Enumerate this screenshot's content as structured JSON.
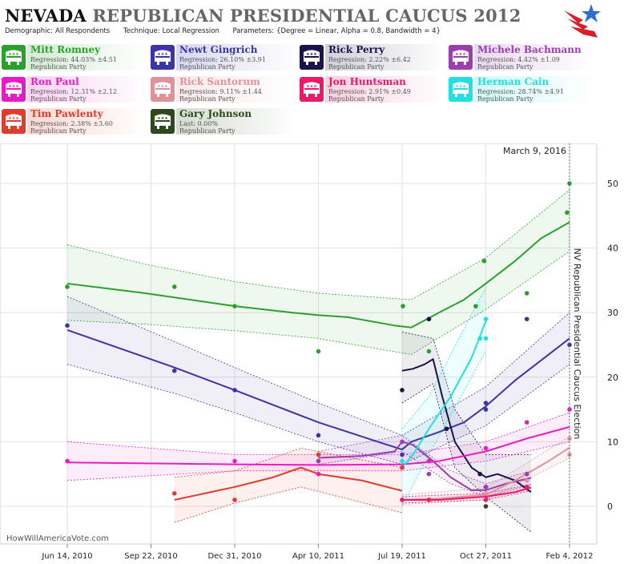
{
  "header": {
    "title_state": "NEVADA",
    "title_rest": "REPUBLICAN PRESIDENTIAL CAUCUS 2012",
    "params": [
      {
        "key": "Demographic:",
        "value": "All Respondents"
      },
      {
        "key": "Technique:",
        "value": "Local Regression"
      },
      {
        "key": "Parameters:",
        "value": "{Degree = Linear, Alpha = 0.8, Bandwidth = 4}"
      }
    ]
  },
  "candidates": [
    {
      "name": "Mitt Romney",
      "stat": "Regression: 44.03% ±4.51",
      "party": "Republican Party",
      "color": "#2ca02c"
    },
    {
      "name": "Newt Gingrich",
      "stat": "Regression: 26.10% ±3.91",
      "party": "Republican Party",
      "color": "#3b35a8"
    },
    {
      "name": "Rick Perry",
      "stat": "Regression: 2.22% ±6.42",
      "party": "Republican Party",
      "color": "#1a1448"
    },
    {
      "name": "Michele Bachmann",
      "stat": "Regression: 4.42% ±1.09",
      "party": "Republican Party",
      "color": "#9b3fb0"
    },
    {
      "name": "Ron Paul",
      "stat": "Regression: 12.31% ±2.12",
      "party": "Republican Party",
      "color": "#e81cc6"
    },
    {
      "name": "Rick Santorum",
      "stat": "Regression: 9.11% ±1.44",
      "party": "Republican Party",
      "color": "#e0929a"
    },
    {
      "name": "Jon Huntsman",
      "stat": "Regression: 2.91% ±0.49",
      "party": "Republican Party",
      "color": "#ea1a6a"
    },
    {
      "name": "Herman Cain",
      "stat": "Regression: 28.74% ±4.91",
      "party": "Republican Party",
      "color": "#22e0e0"
    },
    {
      "name": "Tim Pawlenty",
      "stat": "Regression: 2.38% ±3.60",
      "party": "Republican Party",
      "color": "#e03c2c"
    },
    {
      "name": "Gary Johnson",
      "stat": "Last: 0.00%",
      "party": "Republican Party",
      "color": "#2e4a1c"
    }
  ],
  "chart_data": {
    "type": "line",
    "title": "",
    "x_ticks": [
      "Jun 14, 2010",
      "Sep 22, 2010",
      "Dec 31, 2010",
      "Apr 10, 2011",
      "Jul 19, 2011",
      "Oct 27, 2011",
      "Feb 4, 2012"
    ],
    "ylim": [
      -5,
      53
    ],
    "y_ticks": [
      0,
      10,
      20,
      30,
      40,
      50
    ],
    "grid": true,
    "today_label": "March 9, 2016",
    "today_date": "2016-03-09",
    "election_label": "NV Republican Presidential Caucus Election",
    "election_date": "2012-02-04",
    "watermark": "HowWillAmericaVote.com",
    "series": [
      {
        "name": "Mitt Romney",
        "color": "#2ca02c",
        "line": [
          [
            "2010-06-14",
            34.5
          ],
          [
            "2010-09-15",
            33
          ],
          [
            "2010-12-31",
            31
          ],
          [
            "2011-03-10",
            30
          ],
          [
            "2011-04-10",
            29.6
          ],
          [
            "2011-05-15",
            29.3
          ],
          [
            "2011-07-10",
            28
          ],
          [
            "2011-07-30",
            27.7
          ],
          [
            "2011-09-01",
            30
          ],
          [
            "2011-10-01",
            32
          ],
          [
            "2011-10-27",
            34.5
          ],
          [
            "2011-12-01",
            38
          ],
          [
            "2012-01-01",
            41.5
          ],
          [
            "2012-02-04",
            44
          ]
        ],
        "band": [
          [
            "2010-06-14",
            28.8,
            40.5
          ],
          [
            "2010-09-15",
            28.2,
            37.5
          ],
          [
            "2010-12-31",
            27.2,
            34.8
          ],
          [
            "2011-04-10",
            26,
            33
          ],
          [
            "2011-07-30",
            23.5,
            32
          ],
          [
            "2011-10-27",
            30.5,
            38.5
          ],
          [
            "2012-02-04",
            39.5,
            49
          ]
        ],
        "points": [
          [
            "2010-06-14",
            34
          ],
          [
            "2010-10-20",
            34
          ],
          [
            "2010-12-31",
            31
          ],
          [
            "2011-04-10",
            24
          ],
          [
            "2011-07-20",
            31
          ],
          [
            "2011-08-20",
            24
          ],
          [
            "2011-10-15",
            31
          ],
          [
            "2011-10-25",
            38
          ],
          [
            "2011-12-15",
            33
          ],
          [
            "2012-02-01",
            45.5
          ],
          [
            "2012-02-04",
            50
          ]
        ]
      },
      {
        "name": "Newt Gingrich",
        "color": "#3b35a8",
        "line": [
          [
            "2010-06-14",
            27.3
          ],
          [
            "2010-10-20",
            21.5
          ],
          [
            "2010-12-31",
            18
          ],
          [
            "2011-04-10",
            13
          ],
          [
            "2011-06-20",
            10
          ],
          [
            "2011-07-19",
            8.8
          ],
          [
            "2011-07-30",
            10
          ],
          [
            "2011-09-01",
            11.5
          ],
          [
            "2011-10-01",
            13
          ],
          [
            "2011-10-27",
            15.5
          ],
          [
            "2011-12-01",
            19.5
          ],
          [
            "2012-02-04",
            26
          ]
        ],
        "band": [
          [
            "2010-06-14",
            22,
            32.5
          ],
          [
            "2010-10-20",
            17.5,
            25.5
          ],
          [
            "2010-12-31",
            14.5,
            21.5
          ],
          [
            "2011-04-10",
            10,
            16
          ],
          [
            "2011-07-19",
            6.5,
            11
          ],
          [
            "2011-10-27",
            12.5,
            18.5
          ],
          [
            "2012-02-04",
            22,
            30
          ]
        ],
        "points": [
          [
            "2010-06-14",
            28
          ],
          [
            "2010-10-20",
            21
          ],
          [
            "2010-12-31",
            18
          ],
          [
            "2011-04-10",
            11
          ],
          [
            "2011-07-19",
            8
          ],
          [
            "2011-08-20",
            29
          ],
          [
            "2011-10-27",
            15
          ],
          [
            "2011-10-27",
            16
          ],
          [
            "2011-12-15",
            29
          ],
          [
            "2012-02-04",
            25
          ]
        ]
      },
      {
        "name": "Rick Perry",
        "color": "#1a1448",
        "line": [
          [
            "2011-07-19",
            21
          ],
          [
            "2011-08-01",
            21.3
          ],
          [
            "2011-08-15",
            22
          ],
          [
            "2011-08-25",
            22.8
          ],
          [
            "2011-09-05",
            17
          ],
          [
            "2011-09-20",
            10
          ],
          [
            "2011-10-10",
            6
          ],
          [
            "2011-10-27",
            4.5
          ],
          [
            "2011-11-10",
            5
          ],
          [
            "2011-12-01",
            4
          ],
          [
            "2011-12-20",
            2.2
          ]
        ],
        "band": [
          [
            "2011-07-19",
            16,
            27
          ],
          [
            "2011-08-25",
            19,
            26
          ],
          [
            "2011-09-20",
            6,
            15
          ],
          [
            "2011-10-27",
            1.5,
            8
          ],
          [
            "2011-12-20",
            -4,
            8
          ]
        ],
        "points": [
          [
            "2011-07-19",
            18
          ],
          [
            "2011-08-20",
            29
          ],
          [
            "2011-09-10",
            12
          ],
          [
            "2011-10-20",
            5
          ],
          [
            "2011-10-27",
            3
          ],
          [
            "2011-12-15",
            3
          ]
        ]
      },
      {
        "name": "Michele Bachmann",
        "color": "#9b3fb0",
        "line": [
          [
            "2011-04-10",
            7.5
          ],
          [
            "2011-06-01",
            7.8
          ],
          [
            "2011-07-10",
            8.5
          ],
          [
            "2011-07-19",
            10
          ],
          [
            "2011-08-01",
            9.5
          ],
          [
            "2011-08-25",
            7
          ],
          [
            "2011-09-15",
            4.5
          ],
          [
            "2011-10-10",
            2.5
          ],
          [
            "2011-10-27",
            2.5
          ],
          [
            "2011-11-20",
            3.5
          ],
          [
            "2011-12-20",
            4.4
          ]
        ],
        "band": [
          [
            "2011-04-10",
            6.5,
            8.5
          ],
          [
            "2011-07-19",
            8.5,
            11
          ],
          [
            "2011-09-15",
            3.5,
            5.5
          ],
          [
            "2011-10-27",
            1.5,
            3.5
          ],
          [
            "2011-12-20",
            3.3,
            5.5
          ]
        ],
        "points": [
          [
            "2011-04-10",
            7
          ],
          [
            "2011-07-19",
            10
          ],
          [
            "2011-08-20",
            5
          ],
          [
            "2011-10-27",
            3
          ],
          [
            "2011-12-15",
            5
          ]
        ]
      },
      {
        "name": "Ron Paul",
        "color": "#e81cc6",
        "line": [
          [
            "2010-06-14",
            6.8
          ],
          [
            "2010-10-20",
            6.6
          ],
          [
            "2011-01-01",
            6.5
          ],
          [
            "2011-04-10",
            6.4
          ],
          [
            "2011-07-19",
            6.5
          ],
          [
            "2011-09-01",
            7
          ],
          [
            "2011-10-27",
            8.5
          ],
          [
            "2011-12-15",
            10.5
          ],
          [
            "2012-02-04",
            12.3
          ]
        ],
        "band": [
          [
            "2010-06-14",
            4,
            10
          ],
          [
            "2011-01-01",
            5.5,
            8
          ],
          [
            "2011-07-19",
            5.5,
            8
          ],
          [
            "2011-10-27",
            7,
            10
          ],
          [
            "2012-02-04",
            10,
            14.5
          ]
        ],
        "points": [
          [
            "2010-06-14",
            7
          ],
          [
            "2010-12-31",
            7
          ],
          [
            "2011-04-10",
            5
          ],
          [
            "2011-07-19",
            6
          ],
          [
            "2011-08-20",
            7
          ],
          [
            "2011-10-27",
            9
          ],
          [
            "2011-12-15",
            13
          ],
          [
            "2012-02-04",
            15
          ]
        ]
      },
      {
        "name": "Rick Santorum",
        "color": "#e0929a",
        "line": [
          [
            "2011-07-19",
            1
          ],
          [
            "2011-09-01",
            1.2
          ],
          [
            "2011-10-27",
            1.8
          ],
          [
            "2011-12-01",
            4
          ],
          [
            "2012-01-10",
            7
          ],
          [
            "2012-02-04",
            9.1
          ]
        ],
        "band": [
          [
            "2011-07-19",
            0.3,
            1.8
          ],
          [
            "2011-10-27",
            1,
            2.8
          ],
          [
            "2012-02-04",
            7.5,
            10.8
          ]
        ],
        "points": [
          [
            "2011-07-19",
            1
          ],
          [
            "2011-10-27",
            2
          ],
          [
            "2011-12-15",
            4
          ],
          [
            "2012-02-04",
            8
          ],
          [
            "2012-02-04",
            10.5
          ]
        ]
      },
      {
        "name": "Jon Huntsman",
        "color": "#ea1a6a",
        "line": [
          [
            "2011-07-19",
            1
          ],
          [
            "2011-09-01",
            1
          ],
          [
            "2011-10-27",
            1.5
          ],
          [
            "2011-12-01",
            2.2
          ],
          [
            "2011-12-20",
            2.9
          ]
        ],
        "band": [
          [
            "2011-07-19",
            0.5,
            1.5
          ],
          [
            "2011-10-27",
            1,
            2
          ],
          [
            "2011-12-20",
            2.4,
            3.4
          ]
        ],
        "points": [
          [
            "2011-07-19",
            1
          ],
          [
            "2011-08-20",
            1
          ],
          [
            "2011-10-27",
            1
          ],
          [
            "2011-12-15",
            3
          ]
        ]
      },
      {
        "name": "Herman Cain",
        "color": "#22e0e0",
        "line": [
          [
            "2011-07-19",
            6
          ],
          [
            "2011-08-01",
            8
          ],
          [
            "2011-08-20",
            12
          ],
          [
            "2011-09-15",
            17
          ],
          [
            "2011-10-10",
            23
          ],
          [
            "2011-10-27",
            28.7
          ]
        ],
        "band": [
          [
            "2011-07-19",
            0,
            12
          ],
          [
            "2011-08-20",
            8,
            17
          ],
          [
            "2011-10-27",
            24,
            34
          ]
        ],
        "points": [
          [
            "2011-07-19",
            7
          ],
          [
            "2011-10-20",
            26
          ],
          [
            "2011-10-27",
            29
          ],
          [
            "2011-10-27",
            26
          ]
        ]
      },
      {
        "name": "Tim Pawlenty",
        "color": "#e03c2c",
        "line": [
          [
            "2010-10-20",
            1
          ],
          [
            "2010-12-31",
            3
          ],
          [
            "2011-02-15",
            4.5
          ],
          [
            "2011-03-20",
            6
          ],
          [
            "2011-04-10",
            5
          ],
          [
            "2011-06-01",
            4
          ],
          [
            "2011-07-19",
            2.4
          ]
        ],
        "band": [
          [
            "2010-10-20",
            -2.5,
            4.5
          ],
          [
            "2010-12-31",
            0.5,
            5.5
          ],
          [
            "2011-03-20",
            3,
            9
          ],
          [
            "2011-07-19",
            -1,
            6
          ]
        ],
        "points": [
          [
            "2010-10-20",
            2
          ],
          [
            "2010-12-31",
            1
          ],
          [
            "2011-04-10",
            8
          ],
          [
            "2011-07-19",
            6
          ]
        ]
      },
      {
        "name": "Gary Johnson",
        "color": "#2e4a1c",
        "line": [],
        "band": [],
        "points": [
          [
            "2011-10-27",
            0
          ]
        ]
      }
    ]
  }
}
